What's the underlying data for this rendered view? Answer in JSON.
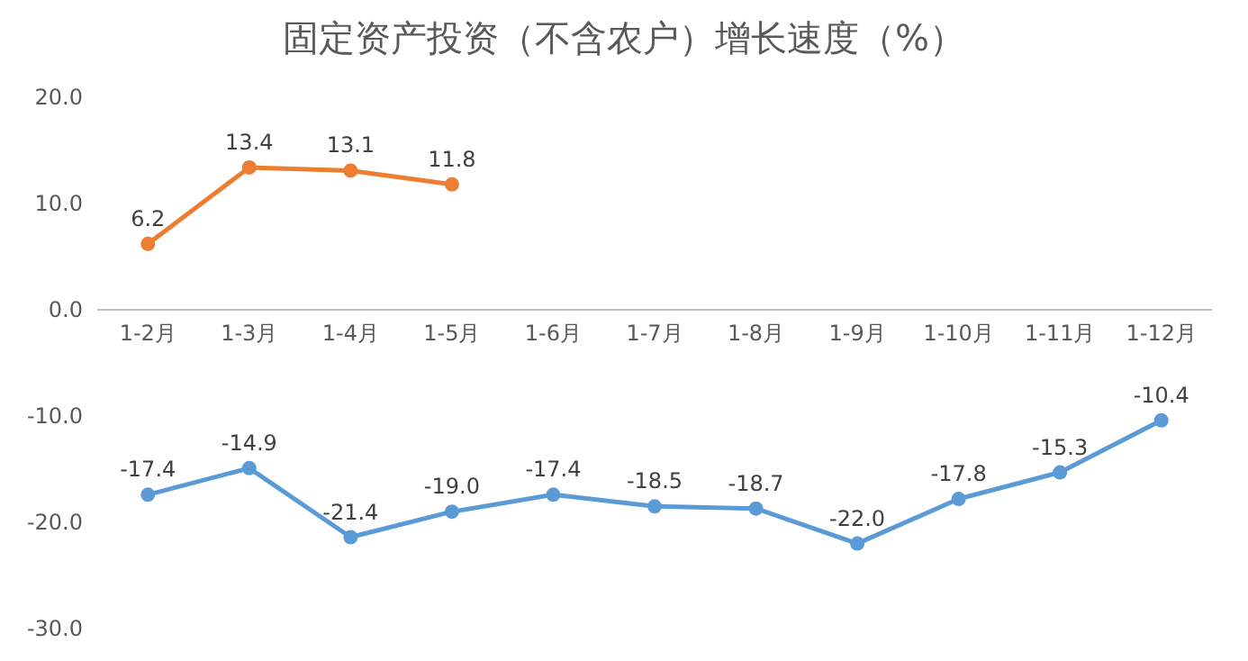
{
  "chart_data": {
    "type": "line",
    "title": "固定资产投资（不含农户）增长速度（%）",
    "categories": [
      "1-2月",
      "1-3月",
      "1-4月",
      "1-5月",
      "1-6月",
      "1-7月",
      "1-8月",
      "1-9月",
      "1-10月",
      "1-11月",
      "1-12月"
    ],
    "series": [
      {
        "color": "#ed7d31",
        "values": [
          6.2,
          13.4,
          13.1,
          11.8,
          null,
          null,
          null,
          null,
          null,
          null,
          null
        ],
        "value_labels": [
          "6.2",
          "13.4",
          "13.1",
          "11.8",
          null,
          null,
          null,
          null,
          null,
          null,
          null
        ]
      },
      {
        "color": "#5b9bd5",
        "values": [
          -17.4,
          -14.9,
          -21.4,
          -19.0,
          -17.4,
          -18.5,
          -18.7,
          -22.0,
          -17.8,
          -15.3,
          -10.4
        ],
        "value_labels": [
          "-17.4",
          "-14.9",
          "-21.4",
          "-19.0",
          "-17.4",
          "-18.5",
          "-18.7",
          "-22.0",
          "-17.8",
          "-15.3",
          "-10.4"
        ]
      }
    ],
    "ylim": [
      -30,
      20
    ],
    "yticks": [
      {
        "value": -30,
        "label": "-30.0"
      },
      {
        "value": -20,
        "label": "-20.0"
      },
      {
        "value": -10,
        "label": "-10.0"
      },
      {
        "value": 0,
        "label": "0.0"
      },
      {
        "value": 10,
        "label": "10.0"
      },
      {
        "value": 20,
        "label": "20.0"
      }
    ],
    "marker": "circle",
    "line_style": "solid",
    "grid": false
  }
}
